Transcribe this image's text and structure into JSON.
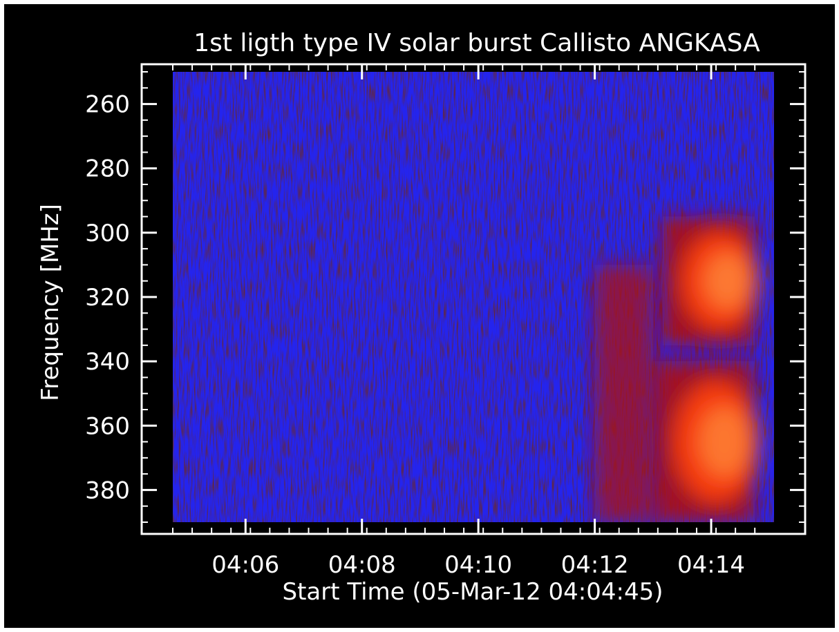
{
  "chart_data": {
    "type": "heatmap",
    "title": "1st ligth type IV solar burst Callisto ANGKASA",
    "xlabel": "Start Time (05-Mar-12 04:04:45)",
    "ylabel": "Frequency [MHz]",
    "x_ticks": [
      "04:06",
      "04:08",
      "04:10",
      "04:12",
      "04:14"
    ],
    "y_ticks": [
      260,
      280,
      300,
      320,
      340,
      360,
      380
    ],
    "x_range_minutes_after_start": [
      0,
      10.33
    ],
    "y_range_mhz": [
      250,
      390
    ],
    "y_inverted": true,
    "grid": false,
    "colormap": [
      "#000000",
      "#2020ff",
      "#b01010",
      "#ff4010",
      "#ff9040",
      "#ffe0a0"
    ],
    "intensity_features": [
      {
        "time": "04:13:10",
        "time_end": "04:14:45",
        "freq_min_mhz": 295,
        "freq_max_mhz": 335,
        "level": 0.85
      },
      {
        "time": "04:13:00",
        "time_end": "04:14:45",
        "freq_min_mhz": 340,
        "freq_max_mhz": 390,
        "level": 0.8
      },
      {
        "time": "04:12:00",
        "time_end": "04:13:00",
        "freq_min_mhz": 310,
        "freq_max_mhz": 390,
        "level": 0.45
      }
    ],
    "colors": {
      "background": "#000000",
      "frame": "#ffffff",
      "text": "#ffffff"
    }
  }
}
